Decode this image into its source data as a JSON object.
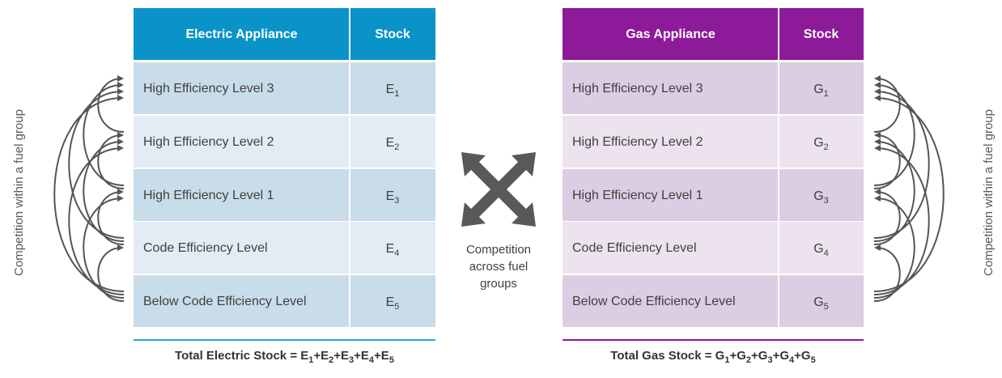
{
  "electric": {
    "header": [
      "Electric Appliance",
      "Stock"
    ],
    "rows": [
      {
        "level": "High Efficiency Level 3",
        "stock": [
          "E",
          "1"
        ]
      },
      {
        "level": "High Efficiency Level 2",
        "stock": [
          "E",
          "2"
        ]
      },
      {
        "level": "High Efficiency Level 1",
        "stock": [
          "E",
          "3"
        ]
      },
      {
        "level": "Code Efficiency Level",
        "stock": [
          "E",
          "4"
        ]
      },
      {
        "level": "Below Code Efficiency Level",
        "stock": [
          "E",
          "5"
        ]
      }
    ],
    "total": [
      "Total Electric Stock = E",
      "1",
      "+E",
      "2",
      "+E",
      "3",
      "+E",
      "4",
      "+E",
      "5"
    ]
  },
  "gas": {
    "header": [
      "Gas Appliance",
      "Stock"
    ],
    "rows": [
      {
        "level": "High Efficiency Level 3",
        "stock": [
          "G",
          "1"
        ]
      },
      {
        "level": "High Efficiency Level 2",
        "stock": [
          "G",
          "2"
        ]
      },
      {
        "level": "High Efficiency Level 1",
        "stock": [
          "G",
          "3"
        ]
      },
      {
        "level": "Code Efficiency Level",
        "stock": [
          "G",
          "4"
        ]
      },
      {
        "level": "Below Code Efficiency Level",
        "stock": [
          "G",
          "5"
        ]
      }
    ],
    "total": [
      "Total Gas Stock = G",
      "1",
      "+G",
      "2",
      "+G",
      "3",
      "+G",
      "4",
      "+G",
      "5"
    ]
  },
  "center": {
    "label": [
      "Competition",
      "across fuel",
      "groups"
    ]
  },
  "side_label": {
    "left": "Competition within a fuel group",
    "right": "Competition within a fuel group"
  }
}
